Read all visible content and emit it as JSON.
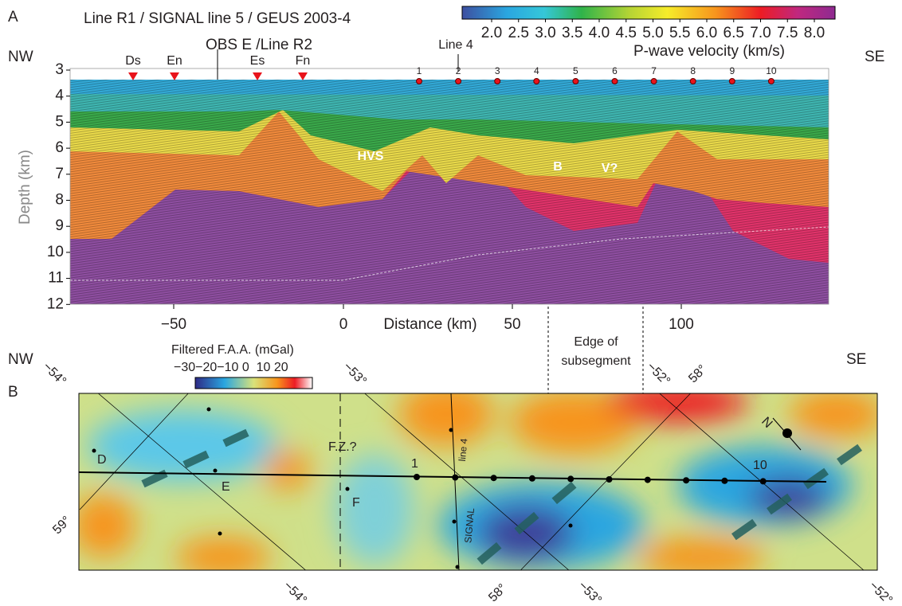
{
  "panel_a": {
    "label": "A",
    "title": "Line R1 / SIGNAL line 5 / GEUS 2003-4",
    "colorbar": {
      "ticks": [
        "2.0",
        "2.5",
        "3.0",
        "3.5",
        "4.0",
        "4.5",
        "5.0",
        "5.5",
        "6.0",
        "6.5",
        "7.0",
        "7.5",
        "8.0"
      ],
      "label": "P-wave velocity (km/s)"
    },
    "left_dir": "NW",
    "right_dir": "SE",
    "y_label": "Depth (km)",
    "yticks": [
      "3",
      "4",
      "5",
      "6",
      "7",
      "8",
      "9",
      "10",
      "11",
      "12"
    ],
    "x_label": "Distance (km)",
    "xticks": [
      "−50",
      "0",
      "50",
      "100"
    ],
    "obs": [
      "Ds",
      "En",
      "Es",
      "Fn"
    ],
    "obs_line_label": "OBS E /Line R2",
    "line4_label": "Line 4",
    "stations": [
      "1",
      "2",
      "3",
      "4",
      "5",
      "6",
      "7",
      "8",
      "9",
      "10"
    ],
    "annotations": [
      "HVS",
      "B",
      "V?"
    ]
  },
  "panel_b": {
    "label": "B",
    "left_dir": "NW",
    "right_dir": "SE",
    "colorbar": {
      "label": "Filtered F.A.A. (mGal)",
      "ticks": "−30−20−10 0  10 20"
    },
    "edge_label": [
      "Edge of",
      "subsegment"
    ],
    "graticule": [
      "−54°",
      "59°",
      "−53°",
      "−52°",
      "58°",
      "−54°",
      "58°",
      "−53°",
      "−52°"
    ],
    "labels": {
      "d": "D",
      "e": "E",
      "f": "F",
      "fz": "F.Z.?",
      "s1": "1",
      "s10": "10",
      "line4": "line 4",
      "signal": "SIGNAL",
      "north": "N"
    }
  }
}
